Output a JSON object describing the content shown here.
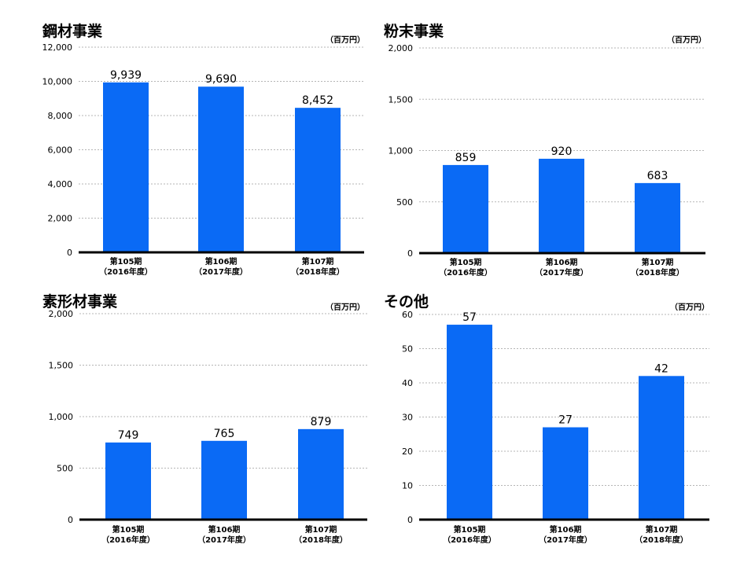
{
  "units_label": "（百万円）",
  "colors": {
    "bar": "#0a6af5",
    "axis": "#000000",
    "grid": "#b5b5b5"
  },
  "chart_data": [
    {
      "type": "bar",
      "title": "鋼材事業",
      "unit": "（百万円）",
      "categories": [
        [
          "第105期",
          "（2016年度）"
        ],
        [
          "第106期",
          "（2017年度）"
        ],
        [
          "第107期",
          "（2018年度）"
        ]
      ],
      "values": [
        9939,
        9690,
        8452
      ],
      "value_labels": [
        "9,939",
        "9,690",
        "8,452"
      ],
      "ylim": [
        0,
        12000
      ],
      "yticks": [
        0,
        2000,
        4000,
        6000,
        8000,
        10000,
        12000
      ],
      "ytick_labels": [
        "0",
        "2,000",
        "4,000",
        "6,000",
        "8,000",
        "10,000",
        "12,000"
      ],
      "grid": true
    },
    {
      "type": "bar",
      "title": "粉末事業",
      "unit": "（百万円）",
      "categories": [
        [
          "第105期",
          "（2016年度）"
        ],
        [
          "第106期",
          "（2017年度）"
        ],
        [
          "第107期",
          "（2018年度）"
        ]
      ],
      "values": [
        859,
        920,
        683
      ],
      "value_labels": [
        "859",
        "920",
        "683"
      ],
      "ylim": [
        0,
        2000
      ],
      "yticks": [
        0,
        500,
        1000,
        1500,
        2000
      ],
      "ytick_labels": [
        "0",
        "500",
        "1,000",
        "1,500",
        "2,000"
      ],
      "grid": true
    },
    {
      "type": "bar",
      "title": "素形材事業",
      "unit": "（百万円）",
      "categories": [
        [
          "第105期",
          "（2016年度）"
        ],
        [
          "第106期",
          "（2017年度）"
        ],
        [
          "第107期",
          "（2018年度）"
        ]
      ],
      "values": [
        749,
        765,
        879
      ],
      "value_labels": [
        "749",
        "765",
        "879"
      ],
      "ylim": [
        0,
        2000
      ],
      "yticks": [
        0,
        500,
        1000,
        1500,
        2000
      ],
      "ytick_labels": [
        "0",
        "500",
        "1,000",
        "1,500",
        "2,000"
      ],
      "grid": true
    },
    {
      "type": "bar",
      "title": "その他",
      "unit": "（百万円）",
      "categories": [
        [
          "第105期",
          "（2016年度）"
        ],
        [
          "第106期",
          "（2017年度）"
        ],
        [
          "第107期",
          "（2018年度）"
        ]
      ],
      "values": [
        57,
        27,
        42
      ],
      "value_labels": [
        "57",
        "27",
        "42"
      ],
      "ylim": [
        0,
        60
      ],
      "yticks": [
        0,
        10,
        20,
        30,
        40,
        50,
        60
      ],
      "ytick_labels": [
        "0",
        "10",
        "20",
        "30",
        "40",
        "50",
        "60"
      ],
      "grid": true
    }
  ]
}
